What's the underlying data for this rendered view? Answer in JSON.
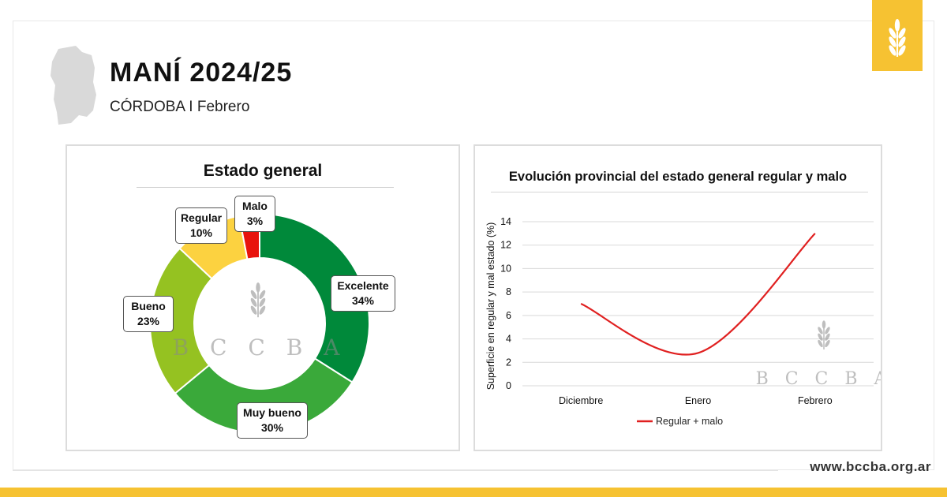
{
  "header": {
    "title": "MANÍ 2024/25",
    "subtitle": "CÓRDOBA I Febrero"
  },
  "watermark": {
    "text": "BCCBA",
    "icon": "wheat-icon"
  },
  "footer": {
    "url": "www.bccba.org.ar"
  },
  "colors": {
    "excelente": "#00893a",
    "muy_bueno": "#3aa93a",
    "bueno": "#95c221",
    "regular": "#fcd240",
    "malo": "#e8130d",
    "brand_yellow": "#f6c232",
    "line": "#e02020"
  },
  "chart_data": [
    {
      "type": "pie",
      "title": "Estado general",
      "categories": [
        "Excelente",
        "Muy bueno",
        "Bueno",
        "Regular",
        "Malo"
      ],
      "values": [
        34,
        30,
        23,
        10,
        3
      ],
      "labels": [
        "34%",
        "30%",
        "23%",
        "10%",
        "3%"
      ]
    },
    {
      "type": "line",
      "title": "Evolución provincial del estado general regular y malo",
      "categories": [
        "Diciembre",
        "Enero",
        "Febrero"
      ],
      "series": [
        {
          "name": "Regular + malo",
          "values": [
            7,
            2.8,
            13
          ]
        }
      ],
      "ylabel": "Superficie en regular y mal estado (%)",
      "xlabel": "",
      "ylim": [
        0,
        14
      ],
      "yticks": [
        "0",
        "2",
        "4",
        "6",
        "8",
        "10",
        "12",
        "14"
      ],
      "grid": true,
      "legend": "bottom"
    }
  ]
}
